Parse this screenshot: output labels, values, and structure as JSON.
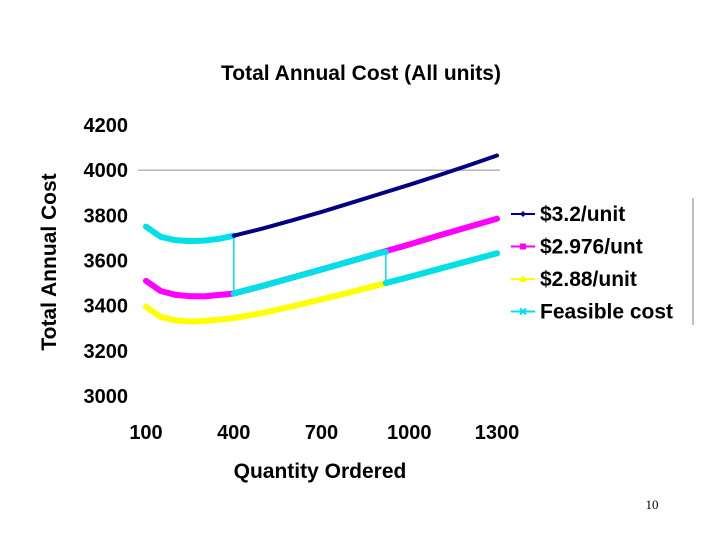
{
  "page_number": "10",
  "chart_data": {
    "type": "line",
    "title": "Total Annual Cost (All units)",
    "xlabel": "Quantity Ordered",
    "ylabel": "Total Annual Cost",
    "xlim": [
      100,
      1300
    ],
    "ylim": [
      3000,
      4200
    ],
    "x_ticks": [
      "100",
      "400",
      "700",
      "1000",
      "1300"
    ],
    "y_ticks": [
      "3000",
      "3200",
      "3400",
      "3600",
      "3800",
      "4000",
      "4200"
    ],
    "gridlines": [
      4000
    ],
    "legend_position": "right",
    "series": [
      {
        "name": "$3.2/unit",
        "color": "#000080",
        "marker": "diamond",
        "x": [
          400,
          500,
          600,
          700,
          800,
          900,
          1000,
          1100,
          1200,
          1300
        ],
        "y": [
          3710,
          3742,
          3778,
          3815,
          3855,
          3895,
          3935,
          3977,
          4020,
          4065
        ]
      },
      {
        "name": "$2.976/unt",
        "color": "#ff00ff",
        "marker": "square",
        "x": [
          100,
          150,
          200,
          250,
          300,
          400,
          500,
          600,
          700,
          800,
          900,
          1000,
          1100,
          1200,
          1300
        ],
        "y": [
          3510,
          3465,
          3448,
          3442,
          3441,
          3454,
          3488,
          3524,
          3560,
          3597,
          3634,
          3671,
          3710,
          3748,
          3785
        ]
      },
      {
        "name": "$2.88/unit",
        "color": "#ffff00",
        "marker": "triangle",
        "x": [
          100,
          150,
          200,
          250,
          300,
          400,
          500,
          600,
          700,
          800,
          900,
          1000,
          1100,
          1200,
          1300
        ],
        "y": [
          3395,
          3350,
          3335,
          3330,
          3332,
          3345,
          3368,
          3397,
          3428,
          3460,
          3493,
          3527,
          3562,
          3597,
          3632
        ]
      },
      {
        "name": "Feasible cost",
        "color": "#00e0e8",
        "marker": "x",
        "x": [
          100,
          150,
          200,
          250,
          300,
          350,
          400,
          400,
          500,
          600,
          700,
          800,
          900,
          920,
          920,
          1000,
          1100,
          1200,
          1300
        ],
        "y": [
          3750,
          3705,
          3690,
          3686,
          3688,
          3696,
          3710,
          3454,
          3488,
          3524,
          3560,
          3597,
          3634,
          3638,
          3500,
          3527,
          3562,
          3597,
          3632
        ]
      }
    ]
  }
}
